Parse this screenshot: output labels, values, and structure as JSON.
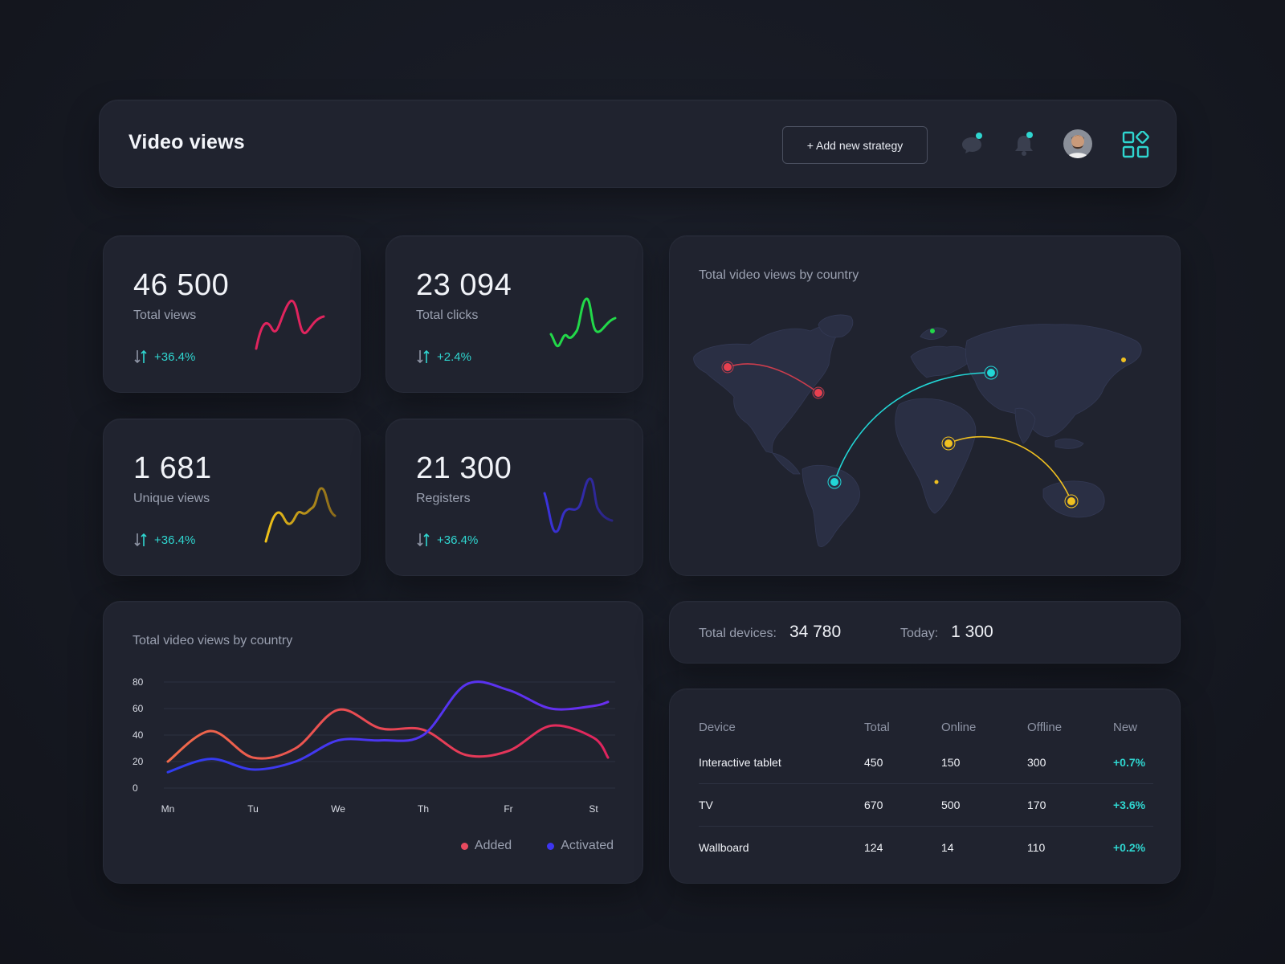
{
  "header": {
    "title": "Video views",
    "add_button": "+ Add new strategy",
    "icons": [
      "chat-icon",
      "bell-icon",
      "avatar",
      "grid-apps-icon"
    ],
    "accent": "#2fd6d0"
  },
  "stats": [
    {
      "value": "46 500",
      "label": "Total views",
      "change": "+36.4%",
      "color": "#e0245e"
    },
    {
      "value": "23 094",
      "label": "Total clicks",
      "change": "+2.4%",
      "color": "#22d849"
    },
    {
      "value": "1 681",
      "label": "Unique views",
      "change": "+36.4%",
      "color": "#f2c419"
    },
    {
      "value": "21 300",
      "label": "Registers",
      "change": "+36.4%",
      "color": "#3b33e0"
    }
  ],
  "map": {
    "title": "Total video views by country",
    "route_colors": [
      "#e8404f",
      "#22d6d6",
      "#f0c020"
    ]
  },
  "line_chart": {
    "title": "Total video views by country",
    "legend": [
      {
        "label": "Added",
        "color": "#e84a5f"
      },
      {
        "label": "Activated",
        "color": "#3d35f0"
      }
    ]
  },
  "chart_data": {
    "type": "line",
    "title": "Total video views by country",
    "categories": [
      "Mn",
      "Tu",
      "We",
      "Th",
      "Fr",
      "St"
    ],
    "x": [
      0,
      0.5,
      1,
      1.5,
      2,
      2.5,
      3,
      3.5,
      4,
      4.5,
      5,
      5.17
    ],
    "yticks": [
      0,
      20,
      40,
      60,
      80
    ],
    "ylim": [
      0,
      80
    ],
    "series": [
      {
        "name": "Added",
        "values": [
          20,
          43,
          23,
          30,
          59,
          45,
          44,
          25,
          28,
          47,
          38,
          23
        ]
      },
      {
        "name": "Activated",
        "values": [
          12,
          22,
          14,
          20,
          36,
          36,
          40,
          78,
          74,
          60,
          62,
          65
        ]
      }
    ],
    "grid": true,
    "legend_position": "bottom-right"
  },
  "devices": {
    "total_label": "Total devices:",
    "total_value": "34 780",
    "today_label": "Today:",
    "today_value": "1 300"
  },
  "table": {
    "headers": [
      "Device",
      "Total",
      "Online",
      "Offline",
      "New"
    ],
    "rows": [
      [
        "Interactive tablet",
        "450",
        "150",
        "300",
        "+0.7%"
      ],
      [
        "TV",
        "670",
        "500",
        "170",
        "+3.6%"
      ],
      [
        "Wallboard",
        "124",
        "14",
        "110",
        "+0.2%"
      ]
    ]
  }
}
